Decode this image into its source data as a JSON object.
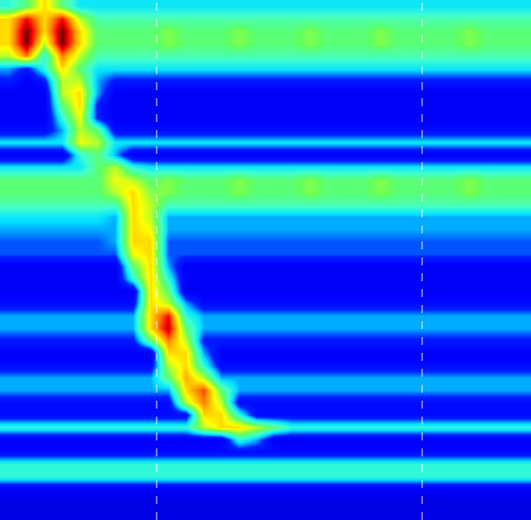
{
  "chart_data": {
    "type": "heatmap",
    "tick_labels": false,
    "grid": false,
    "xlim": [
      -0.5,
      29.5
    ],
    "ylim": [
      -0.5,
      41.5
    ],
    "zlim": [
      0,
      10
    ],
    "vlines": [
      8.35,
      23.35
    ],
    "z": [
      [
        4,
        5,
        7,
        5,
        3.5,
        3.5,
        3.5,
        3.5,
        3.5,
        3.5,
        3.5,
        3.5,
        3.5,
        3.5,
        3.5,
        3.5,
        3.5,
        3.5,
        3.5,
        3.5,
        3.5,
        3.5,
        3.5,
        3.5,
        3.5,
        3.5,
        3.5,
        3.5,
        3.5,
        3.5
      ],
      [
        7,
        9,
        7,
        9,
        6,
        4.5,
        4.5,
        4.5,
        4.5,
        4.5,
        4.5,
        4.5,
        4.5,
        4.5,
        4.5,
        4.5,
        4.5,
        4.5,
        4.5,
        4.5,
        4.5,
        4.5,
        4.5,
        4.5,
        4.5,
        4.5,
        4.5,
        4.5,
        4.5,
        4.5
      ],
      [
        7,
        10,
        7,
        10,
        7,
        5,
        5,
        5,
        5,
        5.5,
        5,
        5,
        5,
        5.5,
        5,
        5,
        5,
        5.5,
        5,
        5,
        5,
        5.5,
        5,
        5,
        5,
        5,
        5.5,
        5,
        5,
        5
      ],
      [
        7,
        10,
        6,
        10,
        7,
        5,
        5,
        5,
        5,
        5.5,
        5,
        5,
        5,
        5.5,
        5,
        5,
        5,
        5.5,
        5,
        5,
        5,
        5.5,
        5,
        5,
        5,
        5,
        5.5,
        5,
        5,
        5
      ],
      [
        6,
        8,
        4,
        8,
        6,
        4.5,
        4.5,
        4.5,
        4.5,
        4.5,
        4.5,
        4.5,
        4.5,
        4.5,
        4.5,
        4.5,
        4.5,
        4.5,
        4.5,
        4.5,
        4.5,
        4.5,
        4.5,
        4.5,
        4.5,
        4.5,
        4.5,
        4.5,
        4.5,
        4.5
      ],
      [
        3,
        2,
        4,
        7,
        5,
        3.5,
        3.5,
        3.5,
        3.5,
        3.5,
        3.5,
        3.5,
        3.5,
        3.5,
        3.5,
        3.5,
        3.5,
        3.5,
        3.5,
        3.5,
        3.5,
        3.5,
        3.5,
        3.5,
        3.5,
        3.5,
        3.5,
        3.5,
        3.5,
        3.5
      ],
      [
        2,
        1,
        2,
        6,
        6,
        3,
        2,
        2,
        2,
        2,
        2,
        2,
        2,
        2,
        2,
        2,
        2,
        2,
        2,
        2,
        2,
        2,
        2,
        2,
        2,
        2,
        2,
        2,
        2,
        2
      ],
      [
        1,
        1,
        1,
        6,
        7,
        3,
        1,
        1,
        1,
        1,
        1,
        1,
        1,
        1,
        1,
        1,
        1,
        1,
        1,
        1,
        1,
        1,
        1,
        1,
        1,
        1,
        1,
        1,
        1,
        1
      ],
      [
        1,
        1,
        1,
        5,
        7,
        2,
        1,
        1,
        1,
        1,
        1,
        1,
        1,
        1,
        1,
        1,
        1,
        1,
        1,
        1,
        1,
        1,
        1,
        1,
        1,
        1,
        1,
        1,
        1,
        1
      ],
      [
        1,
        1,
        1,
        4,
        6.5,
        2,
        1,
        1,
        1,
        1,
        1,
        1,
        1,
        1,
        1,
        1,
        1,
        1,
        1,
        1,
        1,
        1,
        1,
        1,
        1,
        1,
        1,
        1,
        1,
        1
      ],
      [
        1.5,
        1.5,
        1.5,
        3,
        6,
        5,
        1.5,
        1.5,
        1.5,
        1.5,
        1.5,
        1.5,
        1.5,
        1.5,
        1.5,
        1.5,
        1.5,
        1.5,
        1.5,
        1.5,
        1.5,
        1.5,
        1.5,
        1.5,
        1.5,
        1.5,
        1.5,
        1.5,
        1.5,
        1.5
      ],
      [
        3.5,
        3.5,
        3.5,
        3.5,
        6.5,
        6,
        3.5,
        3.5,
        3.5,
        3.5,
        3.5,
        3.5,
        3.5,
        3.5,
        3.5,
        3.5,
        3.5,
        3.5,
        3.5,
        3.5,
        3.5,
        3.5,
        3.5,
        3.5,
        3.5,
        3.5,
        3.5,
        3.5,
        3.5,
        3.5
      ],
      [
        1,
        1,
        1,
        1,
        4,
        5,
        3,
        1,
        1,
        1,
        1,
        1,
        1,
        1,
        1,
        1,
        1,
        1,
        1,
        1,
        1,
        1,
        1,
        1,
        1,
        1,
        1,
        1,
        1,
        1
      ],
      [
        3.5,
        3.5,
        3.5,
        3.5,
        3.5,
        5,
        6,
        4,
        3.5,
        3.5,
        3.5,
        3.5,
        3.5,
        3.5,
        3.5,
        3.5,
        3.5,
        3.5,
        3.5,
        3.5,
        3.5,
        3.5,
        3.5,
        3.5,
        3.5,
        3.5,
        3.5,
        3.5,
        3.5,
        3.5
      ],
      [
        5,
        5,
        5,
        5,
        5,
        5,
        6.5,
        6,
        5,
        5.5,
        5,
        5,
        5,
        5.5,
        5,
        5,
        5,
        5.5,
        5,
        5,
        5,
        5.5,
        5,
        5,
        5,
        5,
        5.5,
        5,
        5,
        5
      ],
      [
        5,
        5,
        5,
        5,
        5,
        5,
        6,
        7,
        5.5,
        5.5,
        5,
        5,
        5,
        5.5,
        5,
        5,
        5,
        5.5,
        5,
        5,
        5,
        5.5,
        5,
        5,
        5,
        5,
        5.5,
        5,
        5,
        5
      ],
      [
        4.5,
        4.5,
        4.5,
        4.5,
        4.5,
        4.5,
        4.5,
        7,
        6,
        4.5,
        4.5,
        4.5,
        4.5,
        4.5,
        4.5,
        4.5,
        4.5,
        4.5,
        4.5,
        4.5,
        4.5,
        4.5,
        4.5,
        4.5,
        4.5,
        4.5,
        4.5,
        4.5,
        4.5,
        4.5
      ],
      [
        3.5,
        3.5,
        3.5,
        3.5,
        3.5,
        3.5,
        3,
        7,
        6,
        3,
        3,
        3,
        3,
        3,
        3,
        3,
        3,
        3,
        3,
        3,
        3,
        3,
        3,
        3,
        3,
        3,
        3,
        3,
        3,
        3
      ],
      [
        3,
        3,
        3,
        3,
        3,
        3,
        3,
        7,
        6.5,
        3,
        3,
        3,
        3,
        3,
        3,
        3,
        3,
        3,
        3,
        3,
        3,
        3,
        3,
        3,
        3,
        3,
        3,
        3,
        3,
        3
      ],
      [
        2.5,
        2.5,
        2.5,
        2.5,
        2.5,
        2.5,
        3,
        7,
        7,
        2.5,
        2.5,
        2.5,
        2.5,
        2.5,
        2.5,
        2.5,
        2.5,
        2.5,
        2.5,
        2.5,
        2.5,
        2.5,
        2.5,
        2.5,
        2.5,
        2.5,
        2.5,
        2.5,
        2.5,
        2.5
      ],
      [
        2.5,
        2.5,
        2.5,
        2.5,
        2.5,
        2.5,
        2.5,
        6.5,
        7,
        2.5,
        2.5,
        2.5,
        2.5,
        2.5,
        2.5,
        2.5,
        2.5,
        2.5,
        2.5,
        2.5,
        2.5,
        2.5,
        2.5,
        2.5,
        2.5,
        2.5,
        2.5,
        2.5,
        2.5,
        2.5
      ],
      [
        1,
        1,
        1,
        1,
        1,
        1,
        1,
        5,
        7,
        3,
        1,
        1,
        1,
        1,
        1,
        1,
        1,
        1,
        1,
        1,
        1,
        1,
        1,
        1,
        1,
        1,
        1,
        1,
        1,
        1
      ],
      [
        1,
        1,
        1,
        1,
        1,
        1,
        1,
        4,
        7,
        4,
        1,
        1,
        1,
        1,
        1,
        1,
        1,
        1,
        1,
        1,
        1,
        1,
        1,
        1,
        1,
        1,
        1,
        1,
        1,
        1
      ],
      [
        1,
        1,
        1,
        1,
        1,
        1,
        1,
        1,
        7,
        5,
        1,
        1,
        1,
        1,
        1,
        1,
        1,
        1,
        1,
        1,
        1,
        1,
        1,
        1,
        1,
        1,
        1,
        1,
        1,
        1
      ],
      [
        1.5,
        1.5,
        1.5,
        1.5,
        1.5,
        1.5,
        1.5,
        1.5,
        7,
        6,
        3,
        1.5,
        1.5,
        1.5,
        1.5,
        1.5,
        1.5,
        1.5,
        1.5,
        1.5,
        1.5,
        1.5,
        1.5,
        1.5,
        1.5,
        1.5,
        1.5,
        1.5,
        1.5,
        1.5
      ],
      [
        3,
        3,
        3,
        3,
        3,
        3,
        3,
        3,
        7,
        9,
        4,
        3,
        3,
        3,
        3,
        3,
        3,
        3,
        3,
        3,
        3,
        3,
        3,
        3,
        3,
        3,
        3,
        3,
        3,
        3
      ],
      [
        3,
        3,
        3,
        3,
        3,
        3,
        3,
        3,
        7,
        9.5,
        5,
        3,
        3,
        3,
        3,
        3,
        3,
        3,
        3,
        3,
        3,
        3,
        3,
        3,
        3,
        3,
        3,
        3,
        3,
        3
      ],
      [
        2,
        2,
        2,
        2,
        2,
        2,
        2,
        2,
        5,
        8,
        6,
        2,
        2,
        2,
        2,
        2,
        2,
        2,
        2,
        2,
        2,
        2,
        2,
        2,
        2,
        2,
        2,
        2,
        2,
        2
      ],
      [
        1,
        1,
        1,
        1,
        1,
        1,
        1,
        1,
        1,
        7,
        7,
        3,
        1,
        1,
        1,
        1,
        1,
        1,
        1,
        1,
        1,
        1,
        1,
        1,
        1,
        1,
        1,
        1,
        1,
        1
      ],
      [
        1.5,
        1.5,
        1.5,
        1.5,
        1.5,
        1.5,
        1.5,
        1.5,
        1.5,
        6,
        7,
        4,
        1.5,
        1.5,
        1.5,
        1.5,
        1.5,
        1.5,
        1.5,
        1.5,
        1.5,
        1.5,
        1.5,
        1.5,
        1.5,
        1.5,
        1.5,
        1.5,
        1.5,
        1.5
      ],
      [
        3,
        3,
        3,
        3,
        3,
        3,
        3,
        3,
        3,
        5,
        7.5,
        6,
        3,
        3,
        3,
        3,
        3,
        3,
        3,
        3,
        3,
        3,
        3,
        3,
        3,
        3,
        3,
        3,
        3,
        3
      ],
      [
        3,
        3,
        3,
        3,
        3,
        3,
        3,
        3,
        3,
        3,
        7,
        8.5,
        5,
        3,
        3,
        3,
        3,
        3,
        3,
        3,
        3,
        3,
        3,
        3,
        3,
        3,
        3,
        3,
        3,
        3
      ],
      [
        1.5,
        1.5,
        1.5,
        1.5,
        1.5,
        1.5,
        1.5,
        1.5,
        1.5,
        1.5,
        6,
        8,
        6,
        1.5,
        1.5,
        1.5,
        1.5,
        1.5,
        1.5,
        1.5,
        1.5,
        1.5,
        1.5,
        1.5,
        1.5,
        1.5,
        1.5,
        1.5,
        1.5,
        1.5
      ],
      [
        1.5,
        1.5,
        1.5,
        1.5,
        1.5,
        1.5,
        1.5,
        1.5,
        1.5,
        1.5,
        1.5,
        7,
        7,
        4,
        1.5,
        1.5,
        1.5,
        1.5,
        1.5,
        1.5,
        1.5,
        1.5,
        1.5,
        1.5,
        1.5,
        1.5,
        1.5,
        1.5,
        1.5,
        1.5
      ],
      [
        4,
        4,
        4,
        4,
        4,
        4,
        4,
        4,
        4,
        4,
        4,
        6,
        7,
        7,
        6,
        5,
        4,
        4,
        4,
        4,
        4,
        4,
        4,
        4,
        4,
        4,
        4,
        4,
        4,
        4
      ],
      [
        1,
        1,
        1,
        1,
        1,
        1,
        1,
        1,
        1,
        1,
        1,
        1,
        1,
        4,
        3,
        1,
        1,
        1,
        1,
        1,
        1,
        1,
        1,
        1,
        1,
        1,
        1,
        1,
        1,
        1
      ],
      [
        1.5,
        1.5,
        1.5,
        1.5,
        1.5,
        1.5,
        1.5,
        1.5,
        1.5,
        1.5,
        1.5,
        1.5,
        1.5,
        1.5,
        1.5,
        1.5,
        1.5,
        1.5,
        1.5,
        1.5,
        1.5,
        1.5,
        1.5,
        1.5,
        1.5,
        1.5,
        1.5,
        1.5,
        1.5,
        1.5
      ],
      [
        4,
        4,
        4,
        4,
        4,
        4,
        4,
        4,
        4,
        4,
        4,
        4,
        4,
        4,
        4,
        4,
        4,
        4,
        4,
        4,
        4,
        4,
        4,
        4,
        4,
        4,
        4,
        4,
        4,
        4
      ],
      [
        4,
        4,
        4,
        4,
        4,
        4,
        4,
        4,
        4,
        4,
        4,
        4,
        4,
        4,
        4,
        4,
        4,
        4,
        4,
        4,
        4,
        4,
        4,
        4,
        4,
        4,
        4,
        4,
        4,
        4
      ],
      [
        1,
        1,
        1,
        1,
        1,
        1,
        1,
        1,
        1,
        1,
        1,
        1,
        1,
        1,
        1,
        1,
        1,
        1,
        1,
        1,
        1,
        1,
        1,
        1,
        1,
        1,
        1,
        1,
        1,
        1
      ],
      [
        0.5,
        0.5,
        0.5,
        0.5,
        0.5,
        0.5,
        0.5,
        0.5,
        0.5,
        0.5,
        0.5,
        0.5,
        0.5,
        0.5,
        0.5,
        0.5,
        0.5,
        0.5,
        0.5,
        0.5,
        0.5,
        0.5,
        0.5,
        0.5,
        0.5,
        0.5,
        0.5,
        0.5,
        0.5,
        0.5
      ],
      [
        0.5,
        0.5,
        0.5,
        0.5,
        0.5,
        0.5,
        0.5,
        0.5,
        0.5,
        0.5,
        0.5,
        0.5,
        0.5,
        0.5,
        0.5,
        0.5,
        0.5,
        0.5,
        0.5,
        0.5,
        0.5,
        0.5,
        0.5,
        0.5,
        0.5,
        0.5,
        0.5,
        0.5,
        0.5,
        0.5
      ]
    ]
  }
}
